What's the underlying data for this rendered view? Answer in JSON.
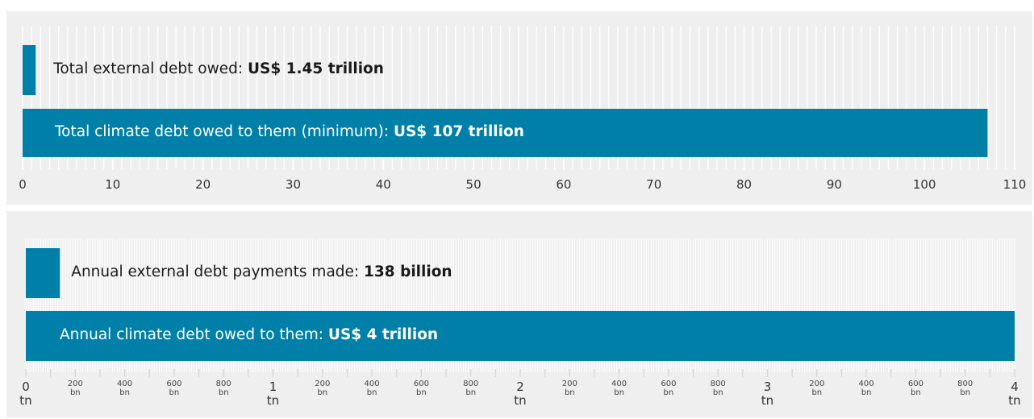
{
  "colors": {
    "bar": "#0080a8",
    "panel_bg": "#efefef",
    "grid": "#ffffff"
  },
  "chart_data": [
    {
      "type": "bar",
      "orientation": "horizontal",
      "unit": "US$ trillion",
      "xlim": [
        0,
        110
      ],
      "major_ticks": [
        0,
        10,
        20,
        30,
        40,
        50,
        60,
        70,
        80,
        90,
        100,
        110
      ],
      "tick_labels": [
        "0",
        "10",
        "20",
        "30",
        "40",
        "50",
        "60",
        "70",
        "80",
        "90",
        "100",
        "110"
      ],
      "grid": true,
      "bars": [
        {
          "value": 1.45,
          "label_prefix": "Total external debt owed: ",
          "label_value": "US$ 1.45 trillion",
          "label_position": "outside"
        },
        {
          "value": 107,
          "label_prefix": "Total climate debt owed to them (minimum): ",
          "label_value": "US$ 107 trillion",
          "label_position": "inside"
        }
      ]
    },
    {
      "type": "bar",
      "orientation": "horizontal",
      "unit": "US$ trillion",
      "xlim": [
        0,
        4
      ],
      "grid": true,
      "major_tick_labels": [
        {
          "value": 0,
          "num": "0",
          "unit": "tn"
        },
        {
          "value": 1,
          "num": "1",
          "unit": "tn"
        },
        {
          "value": 2,
          "num": "2",
          "unit": "tn"
        },
        {
          "value": 3,
          "num": "3",
          "unit": "tn"
        },
        {
          "value": 4,
          "num": "4",
          "unit": "tn"
        }
      ],
      "minor_tick_labels": [
        {
          "value": 0.2,
          "num": "200",
          "unit": "bn"
        },
        {
          "value": 0.4,
          "num": "400",
          "unit": "bn"
        },
        {
          "value": 0.6,
          "num": "600",
          "unit": "bn"
        },
        {
          "value": 0.8,
          "num": "800",
          "unit": "bn"
        },
        {
          "value": 1.2,
          "num": "200",
          "unit": "bn"
        },
        {
          "value": 1.4,
          "num": "400",
          "unit": "bn"
        },
        {
          "value": 1.6,
          "num": "600",
          "unit": "bn"
        },
        {
          "value": 1.8,
          "num": "800",
          "unit": "bn"
        },
        {
          "value": 2.2,
          "num": "200",
          "unit": "bn"
        },
        {
          "value": 2.4,
          "num": "400",
          "unit": "bn"
        },
        {
          "value": 2.6,
          "num": "600",
          "unit": "bn"
        },
        {
          "value": 2.8,
          "num": "800",
          "unit": "bn"
        },
        {
          "value": 3.2,
          "num": "200",
          "unit": "bn"
        },
        {
          "value": 3.4,
          "num": "400",
          "unit": "bn"
        },
        {
          "value": 3.6,
          "num": "600",
          "unit": "bn"
        },
        {
          "value": 3.8,
          "num": "800",
          "unit": "bn"
        }
      ],
      "bars": [
        {
          "value": 0.138,
          "label_prefix": "Annual external debt payments made: ",
          "label_value": "138 billion",
          "label_position": "outside"
        },
        {
          "value": 4,
          "label_prefix": "Annual climate debt owed to them: ",
          "label_value": "US$ 4 trillion",
          "label_position": "inside"
        }
      ]
    }
  ]
}
